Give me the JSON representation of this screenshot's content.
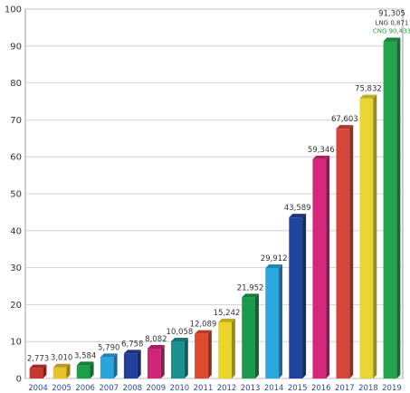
{
  "chart_data": {
    "type": "bar",
    "title": "",
    "xlabel": "",
    "ylabel": "",
    "ylim": [
      0,
      100
    ],
    "yticks": [
      0,
      10,
      20,
      30,
      40,
      50,
      60,
      70,
      80,
      90,
      100
    ],
    "grid": true,
    "legend": "none",
    "categories": [
      "2004",
      "2005",
      "2006",
      "2007",
      "2008",
      "2009",
      "2010",
      "2011",
      "2012",
      "2013",
      "2014",
      "2015",
      "2016",
      "2017",
      "2018",
      "2019"
    ],
    "values": [
      2.773,
      3.01,
      3.584,
      5.79,
      6.758,
      8.082,
      10.058,
      12.089,
      15.242,
      21.952,
      29.912,
      43.589,
      59.346,
      67.603,
      75.832,
      91.305
    ],
    "data_labels": [
      "2,773",
      "3,010",
      "3,584",
      "5,790",
      "6,758",
      "8,082",
      "10,058",
      "12,089",
      "15,242",
      "21,952",
      "29,912",
      "43,589",
      "59,346",
      "67,603",
      "75,832",
      "91,305"
    ],
    "bar_colors": [
      "#c8372d",
      "#e8c22a",
      "#1d9e48",
      "#2aa4dc",
      "#213f9c",
      "#d0267a",
      "#17908f",
      "#e04a2c",
      "#ecd529",
      "#1a9a4a",
      "#2aa7de",
      "#1f449e",
      "#d6287a",
      "#d8453a",
      "#e9d532",
      "#22a54c"
    ],
    "annotations": [
      {
        "category": "2019",
        "text": "LNG 0,871",
        "color": "#333333"
      },
      {
        "category": "2019",
        "text": "CNG 90,433",
        "color": "#1f9e3c"
      }
    ]
  }
}
